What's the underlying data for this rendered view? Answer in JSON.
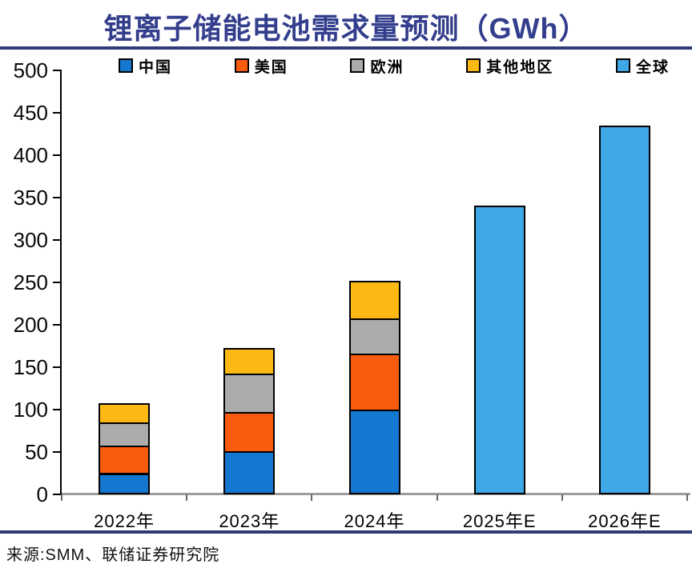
{
  "chart_data": {
    "type": "bar",
    "stacked": true,
    "title": "锂离子储能电池需求量预测（GWh）",
    "unit": "GWh",
    "categories": [
      "2022年",
      "2023年",
      "2024年",
      "2025年E",
      "2026年E"
    ],
    "series": [
      {
        "name": "中国",
        "color": "#1477D0",
        "values": [
          25,
          51,
          100,
          null,
          null
        ]
      },
      {
        "name": "美国",
        "color": "#FA5C0F",
        "values": [
          33,
          46,
          66,
          null,
          null
        ]
      },
      {
        "name": "欧洲",
        "color": "#ABABAB",
        "values": [
          27,
          45,
          42,
          null,
          null
        ]
      },
      {
        "name": "其他地区",
        "color": "#FCB813",
        "values": [
          23,
          31,
          44,
          null,
          null
        ]
      },
      {
        "name": "全球",
        "color": "#3FA9E8",
        "values": [
          null,
          null,
          null,
          341,
          435
        ]
      }
    ],
    "ylim": [
      0,
      500
    ],
    "ytick_step": 50,
    "legend_position": "top",
    "grid": false,
    "axis_colors": {
      "y_axis": "#000000",
      "x_axis": "#9C9C9C"
    }
  },
  "theme": {
    "title_color": "#333E8C",
    "rule_color": "#2F3A78",
    "background": "#FFFFFF",
    "bar_border": "#000000"
  },
  "footer": {
    "source": "来源:SMM、联储证券研究院"
  }
}
